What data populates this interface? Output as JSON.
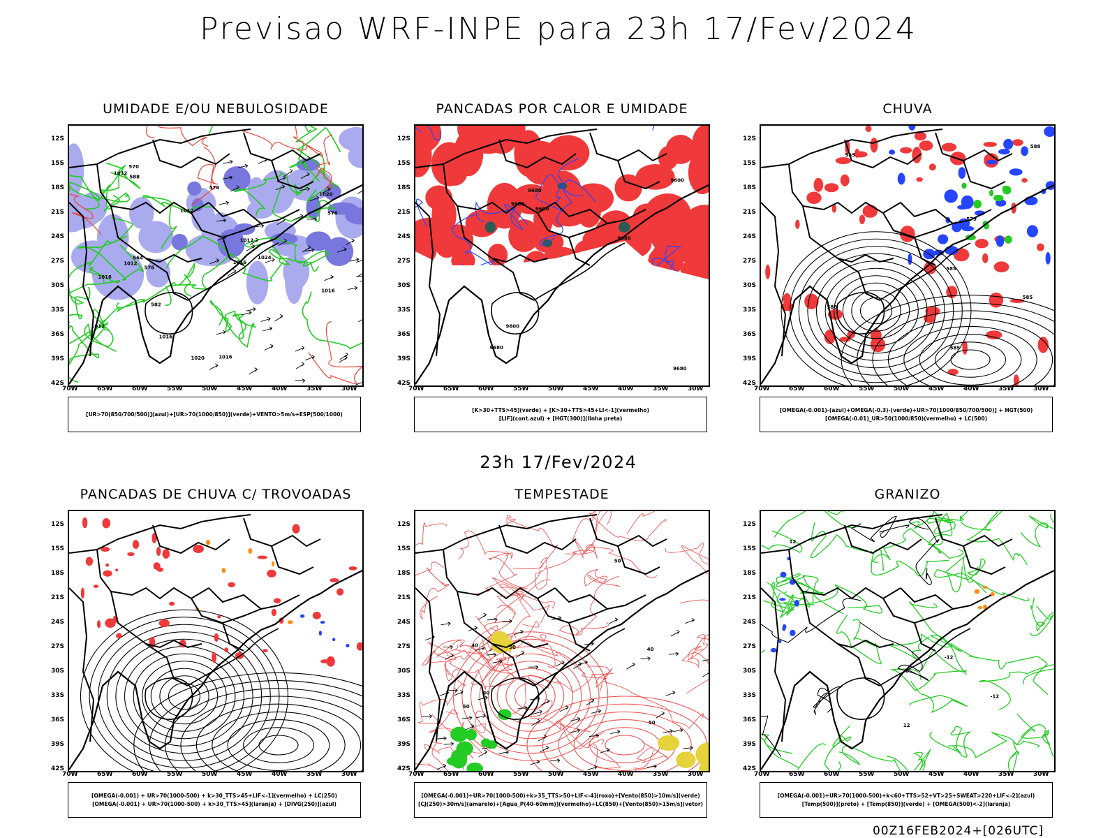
{
  "main_title": "Previsao WRF-INPE  para 23h 17/Fev/2024",
  "middle_caption": "23h 17/Fev/2024",
  "footer": "00Z16FEB2024+[026UTC]",
  "lat_labels": [
    "12S",
    "15S",
    "18S",
    "21S",
    "24S",
    "27S",
    "30S",
    "33S",
    "36S",
    "39S",
    "42S"
  ],
  "lon_labels": [
    "70W",
    "65W",
    "60W",
    "55W",
    "50W",
    "45W",
    "40W",
    "35W",
    "30W"
  ],
  "colors": {
    "red_field": "#f0393a",
    "blue_field": "#2645ff",
    "lavender": "#aaaaee",
    "green_contour": "#22cc22",
    "dark_teal": "#2e5a55",
    "orange": "#ff8c1a",
    "yellow": "#e6d23a"
  },
  "panels": [
    {
      "title": "UMIDADE E/OU NEBULOSIDADE",
      "legend": [
        "[UR>70(850/700/500)](azul)+[UR>70(1000/850)](verde)+VENTO>5m/s+ESP(500/1000)"
      ],
      "contour_labels": [
        "1012",
        "1012",
        "1012",
        "1016",
        "1020",
        "1016",
        "1012",
        "1016",
        "1016",
        "1012",
        "1016",
        "1020",
        "1024",
        "576",
        "576",
        "570",
        "564",
        "582",
        "588",
        "576"
      ]
    },
    {
      "title": "PANCADAS POR CALOR E UMIDADE",
      "legend": [
        "[K>30+TTS>45](verde) + [K>30+TTS>45+LI<-1](vermelho)",
        "[LIF](cont.azul) + [HGT(300)](linha preta)"
      ],
      "contour_labels": [
        "9680",
        "9680",
        "9680",
        "9600",
        "9680",
        "9600",
        "9600",
        "9680"
      ]
    },
    {
      "title": "CHUVA",
      "legend": [
        "[OMEGA(-0.001)-(azul)+OMEGA(-0.3)-(verde)+UR>70(1000/850/700/500)] + HGT(500)",
        "[OMEGA(-0.01)_UR>50(1000/850)(vermelho) + LC(500)"
      ],
      "contour_labels": [
        "588",
        "585",
        "585",
        "585",
        "579",
        "585",
        "588"
      ]
    },
    {
      "title": "PANCADAS DE CHUVA C/ TROVOADAS",
      "legend": [
        "[OMEGA(-0.001) + UR>70(1000-500) + k>30_TTS>45+LIF<-1](vermelho) + LC(250)",
        "[OMEGA(-0.001) + UR>70(1000-500) + k>30_TTS>45](laranja) + [DIVG(250)](azul)"
      ],
      "contour_labels": []
    },
    {
      "title": "TEMPESTADE",
      "legend": [
        "[OMEGA(-0.001)+UR>70(1000-500)+k>35_TTS>50+LIF<-4](roxo)+[Vento(850)>10m/s](verde)",
        "[CJ(250)>30m/s](amarelo)+[Agua_P(40-60mm)](vermelho)+LC(850)+[Vento(850)>15m/s](vetor)"
      ],
      "contour_labels": [
        "50",
        "40",
        "50",
        "50",
        "50",
        "40",
        "40"
      ]
    },
    {
      "title": "GRANIZO",
      "legend": [
        "[OMEGA(-0.001)+UR>70(1000-500)+k<60+TTS>52+VT>25+SWEAT>220+LIF<-2](azul)",
        "[Temp(500)](preto) + [Temp(850)](verde) + [OMEGA(500)<-2](laranja)"
      ],
      "contour_labels": [
        "-12",
        "12",
        "12",
        "-12"
      ]
    }
  ]
}
